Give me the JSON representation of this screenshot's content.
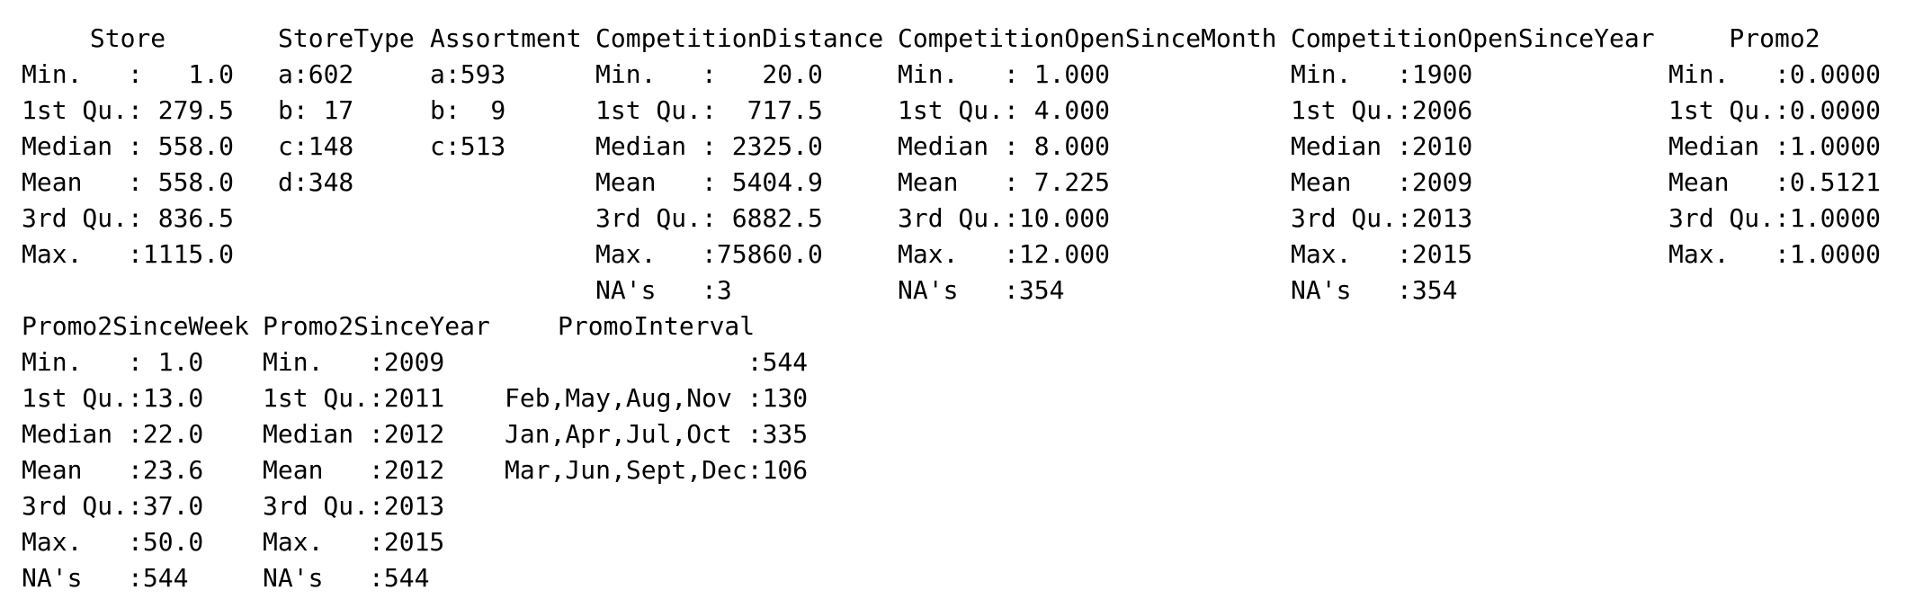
{
  "blocks": [
    {
      "columns": [
        {
          "header": "Store",
          "cells": [
            "Min.   :   1.0",
            "1st Qu.: 279.5",
            "Median : 558.0",
            "Mean   : 558.0",
            "3rd Qu.: 836.5",
            "Max.   :1115.0"
          ]
        },
        {
          "header": "StoreType",
          "cells": [
            "a:602",
            "b: 17",
            "c:148",
            "d:348"
          ]
        },
        {
          "header": "Assortment",
          "cells": [
            "a:593",
            "b:  9",
            "c:513"
          ]
        },
        {
          "header": "CompetitionDistance",
          "cells": [
            "Min.   :   20.0",
            "1st Qu.:  717.5",
            "Median : 2325.0",
            "Mean   : 5404.9",
            "3rd Qu.: 6882.5",
            "Max.   :75860.0",
            "NA's   :3"
          ]
        },
        {
          "header": "CompetitionOpenSinceMonth",
          "cells": [
            "Min.   : 1.000",
            "1st Qu.: 4.000",
            "Median : 8.000",
            "Mean   : 7.225",
            "3rd Qu.:10.000",
            "Max.   :12.000",
            "NA's   :354"
          ]
        },
        {
          "header": "CompetitionOpenSinceYear",
          "cells": [
            "Min.   :1900",
            "1st Qu.:2006",
            "Median :2010",
            "Mean   :2009",
            "3rd Qu.:2013",
            "Max.   :2015",
            "NA's   :354"
          ]
        },
        {
          "header": "Promo2",
          "cells": [
            "Min.   :0.0000",
            "1st Qu.:0.0000",
            "Median :1.0000",
            "Mean   :0.5121",
            "3rd Qu.:1.0000",
            "Max.   :1.0000"
          ]
        }
      ]
    },
    {
      "columns": [
        {
          "header": "Promo2SinceWeek",
          "cells": [
            "Min.   : 1.0",
            "1st Qu.:13.0",
            "Median :22.0",
            "Mean   :23.6",
            "3rd Qu.:37.0",
            "Max.   :50.0",
            "NA's   :544"
          ]
        },
        {
          "header": "Promo2SinceYear",
          "cells": [
            "Min.   :2009",
            "1st Qu.:2011",
            "Median :2012",
            "Mean   :2012",
            "3rd Qu.:2013",
            "Max.   :2015",
            "NA's   :544"
          ]
        },
        {
          "header": "PromoInterval",
          "cells": [
            "                :544",
            "Feb,May,Aug,Nov :130",
            "Jan,Apr,Jul,Oct :335",
            "Mar,Jun,Sept,Dec:106"
          ]
        }
      ]
    }
  ]
}
